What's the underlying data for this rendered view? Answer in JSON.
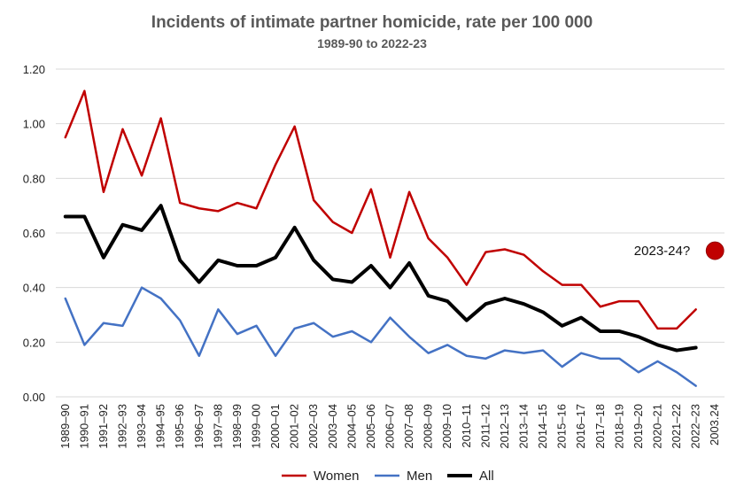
{
  "chart_data": {
    "type": "line",
    "title": "Incidents of intimate partner homicide, rate per 100 000",
    "subtitle": "1989-90 to 2022-23",
    "xlabel": "",
    "ylabel": "",
    "ylim": [
      0,
      1.2
    ],
    "yticks": [
      "0.00",
      "0.20",
      "0.40",
      "0.60",
      "0.80",
      "1.00",
      "1.20"
    ],
    "grid": true,
    "legend_position": "bottom",
    "categories": [
      "1989–90",
      "1990–91",
      "1991–92",
      "1992–93",
      "1993–94",
      "1994–95",
      "1995–96",
      "1996–97",
      "1997–98",
      "1998–99",
      "1999–00",
      "2000–01",
      "2001–02",
      "2002–03",
      "2003–04",
      "2004–05",
      "2005–06",
      "2006–07",
      "2007–08",
      "2008–09",
      "2009–10",
      "2010–11",
      "2011–12",
      "2012–13",
      "2013–14",
      "2014–15",
      "2015–16",
      "2016–17",
      "2017–18",
      "2018–19",
      "2019–20",
      "2020–21",
      "2021–22",
      "2022–23",
      "2003.24"
    ],
    "series": [
      {
        "name": "Women",
        "color": "#c00000",
        "width": 2.5,
        "values": [
          0.95,
          1.12,
          0.75,
          0.98,
          0.81,
          1.02,
          0.71,
          0.69,
          0.68,
          0.71,
          0.69,
          0.85,
          0.99,
          0.72,
          0.64,
          0.6,
          0.76,
          0.51,
          0.75,
          0.58,
          0.51,
          0.41,
          0.53,
          0.54,
          0.52,
          0.46,
          0.41,
          0.41,
          0.33,
          0.35,
          0.35,
          0.25,
          0.25,
          0.32,
          null
        ]
      },
      {
        "name": "Men",
        "color": "#4472c4",
        "width": 2.5,
        "values": [
          0.36,
          0.19,
          0.27,
          0.26,
          0.4,
          0.36,
          0.28,
          0.15,
          0.32,
          0.23,
          0.26,
          0.15,
          0.25,
          0.27,
          0.22,
          0.24,
          0.2,
          0.29,
          0.22,
          0.16,
          0.19,
          0.15,
          0.14,
          0.17,
          0.16,
          0.17,
          0.11,
          0.16,
          0.14,
          0.14,
          0.09,
          0.13,
          0.09,
          0.04,
          null
        ]
      },
      {
        "name": "All",
        "color": "#000000",
        "width": 4,
        "values": [
          0.66,
          0.66,
          0.51,
          0.63,
          0.61,
          0.7,
          0.5,
          0.42,
          0.5,
          0.48,
          0.48,
          0.51,
          0.62,
          0.5,
          0.43,
          0.42,
          0.48,
          0.4,
          0.49,
          0.37,
          0.35,
          0.28,
          0.34,
          0.36,
          0.34,
          0.31,
          0.26,
          0.29,
          0.24,
          0.24,
          0.22,
          0.19,
          0.17,
          0.18,
          null
        ]
      }
    ],
    "annotation": {
      "text": "2023-24?",
      "category": "2003.24",
      "value": 0.535,
      "color": "#c00000"
    }
  }
}
